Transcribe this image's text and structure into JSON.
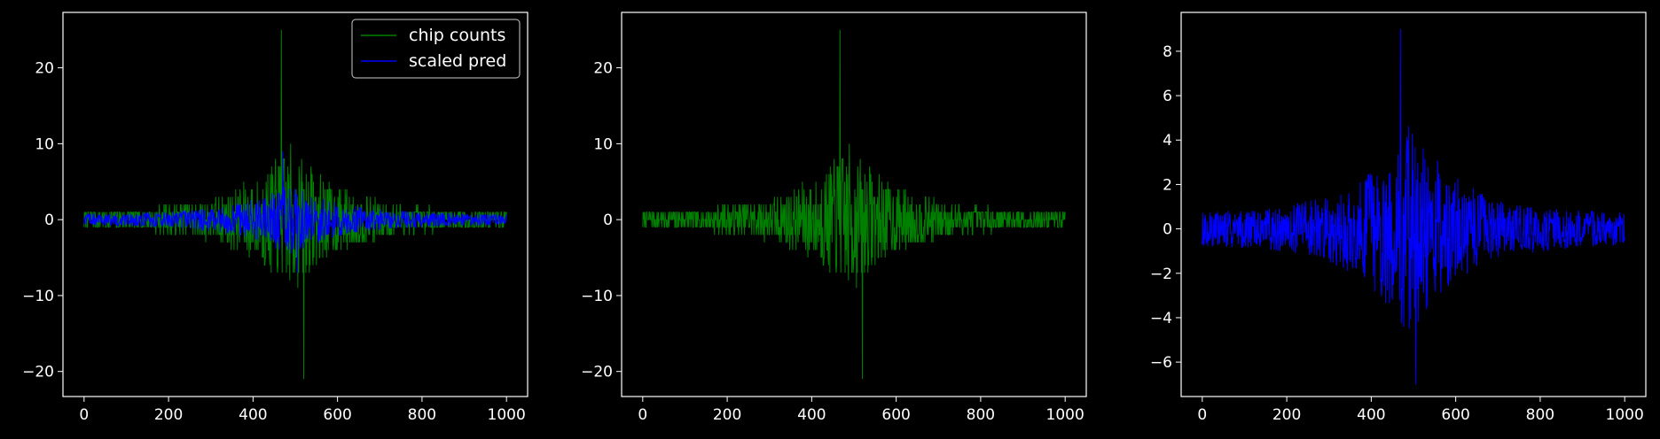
{
  "figure": {
    "background": "#000000",
    "axes_color": "#ffffff",
    "series_colors": {
      "chip_counts": "#008000",
      "scaled_pred": "#0000ff"
    }
  },
  "chart_data": [
    {
      "type": "line",
      "title": "",
      "xlabel": "",
      "ylabel": "",
      "xlim": [
        -50,
        1050
      ],
      "ylim": [
        -23.3,
        27.3
      ],
      "x_ticks": [
        0,
        200,
        400,
        600,
        800,
        1000
      ],
      "y_ticks": [
        -20,
        -10,
        0,
        10,
        20
      ],
      "legend": {
        "placement": "top-right",
        "entries": [
          "chip counts",
          "scaled pred"
        ]
      },
      "grid": false,
      "series": [
        {
          "name": "chip counts",
          "key": "chip_counts",
          "color": "#008000",
          "x_range": [
            0,
            1000
          ],
          "max": 25,
          "min": -21,
          "spike_up_x": 467,
          "spike_down_x": 520
        },
        {
          "name": "scaled pred",
          "key": "scaled_pred",
          "color": "#0000ff",
          "x_range": [
            0,
            1000
          ],
          "max": 9,
          "min": -7,
          "spike_up_x": 470,
          "spike_down_x": 505
        }
      ]
    },
    {
      "type": "line",
      "title": "",
      "xlabel": "",
      "ylabel": "",
      "xlim": [
        -50,
        1050
      ],
      "ylim": [
        -23.3,
        27.3
      ],
      "x_ticks": [
        0,
        200,
        400,
        600,
        800,
        1000
      ],
      "y_ticks": [
        -20,
        -10,
        0,
        10,
        20
      ],
      "grid": false,
      "series": [
        {
          "key": "chip_counts",
          "color": "#008000",
          "x_range": [
            0,
            1000
          ],
          "max": 25,
          "min": -21,
          "spike_up_x": 467,
          "spike_down_x": 520
        }
      ]
    },
    {
      "type": "line",
      "title": "",
      "xlabel": "",
      "ylabel": "",
      "xlim": [
        -50,
        1050
      ],
      "ylim": [
        -7.55,
        9.75
      ],
      "x_ticks": [
        0,
        200,
        400,
        600,
        800,
        1000
      ],
      "y_ticks": [
        -6,
        -4,
        -2,
        0,
        2,
        4,
        6,
        8
      ],
      "grid": false,
      "series": [
        {
          "key": "scaled_pred",
          "color": "#0000ff",
          "x_range": [
            0,
            1000
          ],
          "max": 9,
          "min": -7,
          "spike_up_x": 470,
          "spike_down_x": 505
        }
      ]
    }
  ]
}
